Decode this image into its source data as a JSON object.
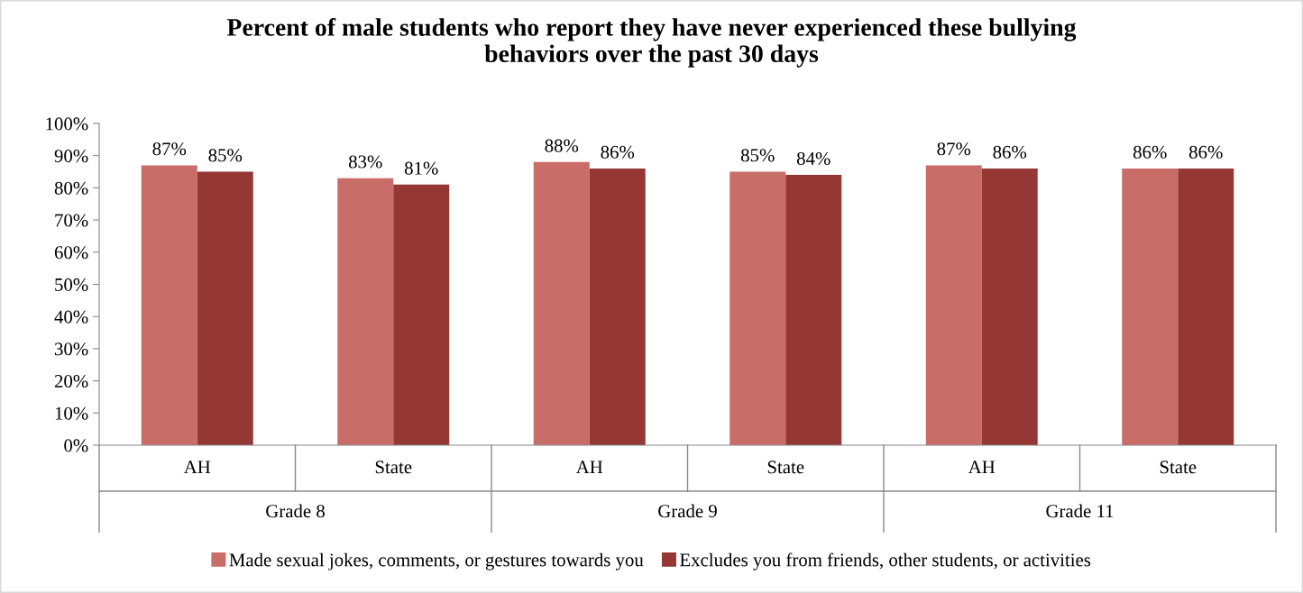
{
  "chart_data": {
    "type": "bar",
    "title": "Percent of male students who report they have never experienced these bullying\nbehaviors over the past 30 days",
    "categories": [
      "AH",
      "State",
      "AH",
      "State",
      "AH",
      "State"
    ],
    "series": [
      {
        "name": "Made sexual jokes, comments, or gestures towards you",
        "color": "#c96d69",
        "values": [
          87,
          83,
          88,
          85,
          87,
          86
        ],
        "value_labels": [
          "87%",
          "83%",
          "88%",
          "85%",
          "87%",
          "86%"
        ]
      },
      {
        "name": "Excludes you from friends, other students, or activities",
        "color": "#953735",
        "values": [
          85,
          81,
          86,
          84,
          86,
          86
        ],
        "value_labels": [
          "85%",
          "81%",
          "86%",
          "84%",
          "86%",
          "86%"
        ]
      }
    ],
    "annotations": [
      "Grade 8",
      "Grade 9",
      "Grade 11"
    ],
    "ylim": [
      0,
      100
    ],
    "yticks": [
      {
        "value": 0,
        "label": "0%"
      },
      {
        "value": 10,
        "label": "10%"
      },
      {
        "value": 20,
        "label": "20%"
      },
      {
        "value": 30,
        "label": "30%"
      },
      {
        "value": 40,
        "label": "40%"
      },
      {
        "value": 50,
        "label": "50%"
      },
      {
        "value": 60,
        "label": "60%"
      },
      {
        "value": 70,
        "label": "70%"
      },
      {
        "value": 80,
        "label": "80%"
      },
      {
        "value": 90,
        "label": "90%"
      },
      {
        "value": 100,
        "label": "100%"
      }
    ],
    "grid": false,
    "legend": "bottom"
  }
}
